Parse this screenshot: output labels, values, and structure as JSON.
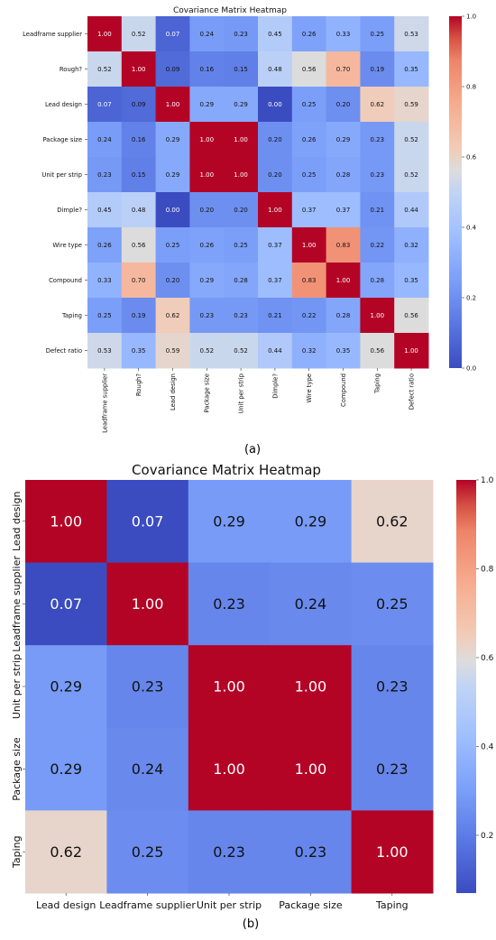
{
  "colorbar": {
    "min": 0,
    "max": 1,
    "low_color": "#3b4cc0",
    "mid_color": "#dddddd",
    "high_color": "#b40426"
  },
  "chart_data": [
    {
      "type": "heatmap",
      "title": "Covariance Matrix Heatmap",
      "caption": "(a)",
      "row_labels": [
        "Leadframe supplier",
        "Rough?",
        "Lead design",
        "Package size",
        "Unit per strip",
        "Dimple?",
        "Wire type",
        "Compound",
        "Taping",
        "Defect ratio"
      ],
      "col_labels": [
        "Leadframe supplier",
        "Rough?",
        "Lead design",
        "Package size",
        "Unit per strip",
        "Dimple?",
        "Wire type",
        "Compound",
        "Taping",
        "Defect ratio"
      ],
      "values": [
        [
          1.0,
          0.52,
          0.07,
          0.24,
          0.23,
          0.45,
          0.26,
          0.33,
          0.25,
          0.53
        ],
        [
          0.52,
          1.0,
          0.09,
          0.16,
          0.15,
          0.48,
          0.56,
          0.7,
          0.19,
          0.35
        ],
        [
          0.07,
          0.09,
          1.0,
          0.29,
          0.29,
          -0.0,
          0.25,
          0.2,
          0.62,
          0.59
        ],
        [
          0.24,
          0.16,
          0.29,
          1.0,
          1.0,
          0.2,
          0.26,
          0.29,
          0.23,
          0.52
        ],
        [
          0.23,
          0.15,
          0.29,
          1.0,
          1.0,
          0.2,
          0.25,
          0.28,
          0.23,
          0.52
        ],
        [
          0.45,
          0.48,
          -0.0,
          0.2,
          0.2,
          1.0,
          0.37,
          0.37,
          0.21,
          0.44
        ],
        [
          0.26,
          0.56,
          0.25,
          0.26,
          0.25,
          0.37,
          1.0,
          0.83,
          0.22,
          0.32
        ],
        [
          0.33,
          0.7,
          0.2,
          0.29,
          0.28,
          0.37,
          0.83,
          1.0,
          0.28,
          0.35
        ],
        [
          0.25,
          0.19,
          0.62,
          0.23,
          0.23,
          0.21,
          0.22,
          0.28,
          1.0,
          0.56
        ],
        [
          0.53,
          0.35,
          0.59,
          0.52,
          0.52,
          0.44,
          0.32,
          0.35,
          0.56,
          1.0
        ]
      ],
      "colorbar_ticks": [
        "0.0",
        "0.2",
        "0.4",
        "0.6",
        "0.8",
        "1.0"
      ],
      "colorbar_range": [
        0,
        1
      ]
    },
    {
      "type": "heatmap",
      "title": "Covariance Matrix Heatmap",
      "caption": "(b)",
      "row_labels": [
        "Lead design",
        "Leadframe supplier",
        "Unit per strip",
        "Package size",
        "Taping"
      ],
      "col_labels": [
        "Lead design",
        "Leadframe supplier",
        "Unit per strip",
        "Package size",
        "Taping"
      ],
      "values": [
        [
          1.0,
          0.07,
          0.29,
          0.29,
          0.62
        ],
        [
          0.07,
          1.0,
          0.23,
          0.24,
          0.25
        ],
        [
          0.29,
          0.23,
          1.0,
          1.0,
          0.23
        ],
        [
          0.29,
          0.24,
          1.0,
          1.0,
          0.23
        ],
        [
          0.62,
          0.25,
          0.23,
          0.23,
          1.0
        ]
      ],
      "colorbar_ticks": [
        "0.2",
        "0.4",
        "0.6",
        "0.8",
        "1.0"
      ],
      "colorbar_range": [
        0.07,
        1
      ]
    }
  ]
}
